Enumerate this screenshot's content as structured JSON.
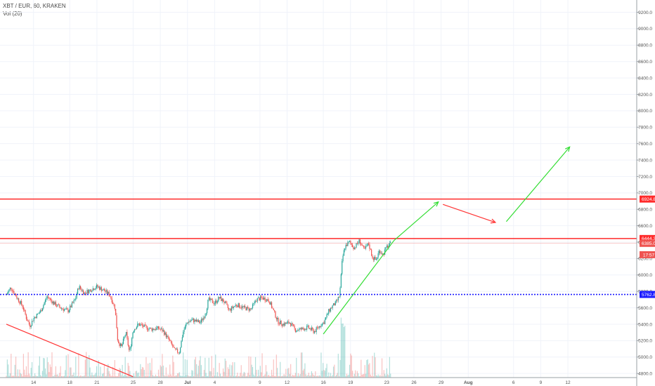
{
  "header": {
    "symbol_line": "XBT / EUR, 60, KRAKEN",
    "indicator_line": "Vol (20)"
  },
  "chart_data": {
    "type": "candlestick",
    "title": "XBT / EUR, 60, KRAKEN",
    "xlabel": "",
    "ylabel": "",
    "ylim": [
      4750,
      9350
    ],
    "y_ticks": [
      4800,
      5000,
      5200,
      5400,
      5600,
      5800,
      6000,
      6200,
      6400,
      6600,
      6800,
      7000,
      7200,
      7400,
      7600,
      7800,
      8000,
      8200,
      8400,
      8600,
      8800,
      9000,
      9200
    ],
    "x_ticks": [
      {
        "label": "14",
        "day": 14
      },
      {
        "label": "18",
        "day": 18
      },
      {
        "label": "21",
        "day": 21
      },
      {
        "label": "25",
        "day": 25
      },
      {
        "label": "28",
        "day": 28
      },
      {
        "label": "Jul",
        "day": 31
      },
      {
        "label": "4",
        "day": 34
      },
      {
        "label": "9",
        "day": 39
      },
      {
        "label": "12",
        "day": 42
      },
      {
        "label": "16",
        "day": 46
      },
      {
        "label": "19",
        "day": 49
      },
      {
        "label": "23",
        "day": 53
      },
      {
        "label": "26",
        "day": 56
      },
      {
        "label": "29",
        "day": 59
      },
      {
        "label": "Aug",
        "day": 62
      },
      {
        "label": "6",
        "day": 67
      },
      {
        "label": "9",
        "day": 70
      },
      {
        "label": "12",
        "day": 73
      }
    ],
    "price_path": [
      [
        11.0,
        5760
      ],
      [
        11.5,
        5850
      ],
      [
        12.2,
        5720
      ],
      [
        12.8,
        5620
      ],
      [
        13.2,
        5480
      ],
      [
        13.6,
        5380
      ],
      [
        14.0,
        5470
      ],
      [
        14.8,
        5560
      ],
      [
        15.5,
        5740
      ],
      [
        16.3,
        5650
      ],
      [
        17.0,
        5600
      ],
      [
        17.8,
        5560
      ],
      [
        18.6,
        5700
      ],
      [
        19.0,
        5860
      ],
      [
        19.6,
        5780
      ],
      [
        20.3,
        5820
      ],
      [
        21.0,
        5860
      ],
      [
        21.8,
        5810
      ],
      [
        22.4,
        5760
      ],
      [
        23.0,
        5600
      ],
      [
        23.3,
        5200
      ],
      [
        23.7,
        5120
      ],
      [
        24.2,
        5300
      ],
      [
        24.6,
        5050
      ],
      [
        25.0,
        5330
      ],
      [
        25.6,
        5400
      ],
      [
        26.4,
        5360
      ],
      [
        27.0,
        5340
      ],
      [
        27.8,
        5350
      ],
      [
        28.3,
        5320
      ],
      [
        29.0,
        5200
      ],
      [
        29.6,
        5080
      ],
      [
        30.1,
        5060
      ],
      [
        30.5,
        5300
      ],
      [
        31.0,
        5430
      ],
      [
        31.6,
        5450
      ],
      [
        32.4,
        5420
      ],
      [
        33.0,
        5530
      ],
      [
        33.3,
        5700
      ],
      [
        34.0,
        5660
      ],
      [
        34.5,
        5720
      ],
      [
        35.0,
        5680
      ],
      [
        35.6,
        5570
      ],
      [
        36.4,
        5640
      ],
      [
        37.2,
        5600
      ],
      [
        38.0,
        5580
      ],
      [
        38.6,
        5700
      ],
      [
        39.3,
        5720
      ],
      [
        40.0,
        5690
      ],
      [
        40.5,
        5560
      ],
      [
        41.0,
        5430
      ],
      [
        41.6,
        5400
      ],
      [
        42.3,
        5420
      ],
      [
        42.9,
        5330
      ],
      [
        43.6,
        5340
      ],
      [
        44.3,
        5360
      ],
      [
        45.0,
        5310
      ],
      [
        45.6,
        5380
      ],
      [
        46.1,
        5430
      ],
      [
        46.6,
        5560
      ],
      [
        47.0,
        5620
      ],
      [
        47.4,
        5660
      ],
      [
        47.8,
        5750
      ],
      [
        48.1,
        6200
      ],
      [
        48.4,
        6350
      ],
      [
        48.9,
        6400
      ],
      [
        49.4,
        6330
      ],
      [
        50.0,
        6420
      ],
      [
        50.5,
        6300
      ],
      [
        51.0,
        6380
      ],
      [
        51.4,
        6220
      ],
      [
        51.8,
        6180
      ],
      [
        52.2,
        6300
      ],
      [
        52.6,
        6250
      ],
      [
        53.0,
        6340
      ],
      [
        53.5,
        6380
      ]
    ],
    "annotations": {
      "h_lines": [
        {
          "value": 6924.8,
          "label": "6924.8",
          "color": "#ff2a2a",
          "style": "solid"
        },
        {
          "value": 6444.3,
          "label": "6444.3",
          "color": "#ff2a2a",
          "style": "solid"
        },
        {
          "value": 5762.8,
          "label": "5762.8",
          "color": "#1a1aff",
          "style": "dotted"
        }
      ],
      "price_badges": [
        {
          "value": 6385.0,
          "label": "6385.0",
          "color": "#ef5350"
        },
        {
          "value": 6290,
          "label": "17:57",
          "color": "#ef5350"
        }
      ],
      "trend_lines": [
        {
          "from": [
            11.0,
            5400
          ],
          "to": [
            25.0,
            4760
          ],
          "color": "#ff3333"
        },
        {
          "from": [
            46.0,
            5280
          ],
          "to": [
            53.8,
            6420
          ],
          "color": "#33dd33"
        }
      ],
      "arrows": [
        {
          "from": [
            53.8,
            6420
          ],
          "to": [
            58.7,
            6890
          ],
          "color": "#33dd33"
        },
        {
          "from": [
            59.2,
            6860
          ],
          "to": [
            65.0,
            6640
          ],
          "color": "#ff3333"
        },
        {
          "from": [
            66.2,
            6650
          ],
          "to": [
            73.2,
            7560
          ],
          "color": "#33dd33"
        }
      ]
    },
    "colors": {
      "up": "#26a69a",
      "down": "#ef5350",
      "grid": "#f0f3fa"
    }
  }
}
